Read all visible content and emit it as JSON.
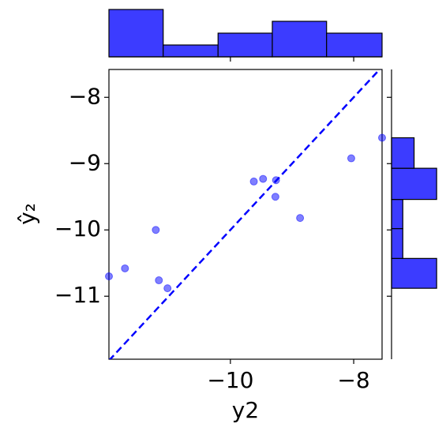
{
  "chart_data": {
    "type": "scatter",
    "xlabel": "y2",
    "ylabel": "ŷ₂",
    "x": [
      -11.97,
      -11.71,
      -11.21,
      -11.16,
      -11.02,
      -9.62,
      -9.47,
      -9.26,
      -9.27,
      -8.87,
      -8.04,
      -7.54
    ],
    "y": [
      -10.7,
      -10.58,
      -10.0,
      -10.76,
      -10.88,
      -9.27,
      -9.23,
      -9.25,
      -9.5,
      -9.82,
      -8.92,
      -8.61
    ],
    "color": "#0000ff",
    "xlim": [
      -11.97,
      -7.54
    ],
    "ylim": [
      -11.95,
      -7.58
    ],
    "xticks": [
      {
        "value": -10,
        "label": "−10"
      },
      {
        "value": -8,
        "label": "−8"
      }
    ],
    "yticks": [
      {
        "value": -8,
        "label": "−8"
      },
      {
        "value": -9,
        "label": "−9"
      },
      {
        "value": -10,
        "label": "−10"
      },
      {
        "value": -11,
        "label": "−11"
      }
    ],
    "x_hist": {
      "bins": [
        -11.97,
        -11.09,
        -10.2,
        -9.32,
        -8.44,
        -7.54
      ],
      "counts": [
        4,
        1,
        2,
        3,
        2
      ],
      "lim": [
        0,
        4.2
      ]
    },
    "y_hist": {
      "bins": [
        -10.88,
        -10.43,
        -9.98,
        -9.54,
        -9.07,
        -8.61
      ],
      "counts": [
        4,
        1,
        1,
        4,
        2
      ],
      "lim": [
        0,
        4.2
      ]
    },
    "hist_color": "#3c3cff"
  }
}
